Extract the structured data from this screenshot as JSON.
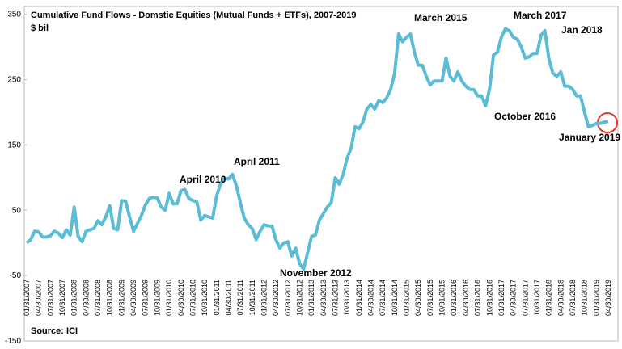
{
  "chart_data": {
    "type": "line",
    "title": "Cumulative Fund Flows - Domstic Equities (Mutual Funds + ETFs), 2007-2019",
    "subtitle": "$ bil",
    "source": "Source: ICI",
    "categories": [
      "01/31/2007",
      null,
      null,
      "04/30/2007",
      null,
      null,
      "07/31/2007",
      null,
      null,
      "10/31/2007",
      null,
      null,
      "01/31/2008",
      null,
      null,
      "04/30/2008",
      null,
      null,
      "07/31/2008",
      null,
      null,
      "10/31/2008",
      null,
      null,
      "01/31/2009",
      null,
      null,
      "04/30/2009",
      null,
      null,
      "07/31/2009",
      null,
      null,
      "10/31/2009",
      null,
      null,
      "01/31/2010",
      null,
      null,
      "04/30/2010",
      null,
      null,
      "07/31/2010",
      null,
      null,
      "10/31/2010",
      null,
      null,
      "01/31/2011",
      null,
      null,
      "04/30/2011",
      null,
      null,
      "07/31/2011",
      null,
      null,
      "10/31/2011",
      null,
      null,
      "01/31/2012",
      null,
      null,
      "04/30/2012",
      null,
      null,
      "07/31/2012",
      null,
      null,
      "10/31/2012",
      null,
      null,
      "01/31/2013",
      null,
      null,
      "04/30/2013",
      null,
      null,
      "07/31/2013",
      null,
      null,
      "10/31/2013",
      null,
      null,
      "01/31/2014",
      null,
      null,
      "04/30/2014",
      null,
      null,
      "07/31/2014",
      null,
      null,
      "10/31/2014",
      null,
      null,
      "01/31/2015",
      null,
      null,
      "04/30/2015",
      null,
      null,
      "07/31/2015",
      null,
      null,
      "10/31/2015",
      null,
      null,
      "01/31/2016",
      null,
      null,
      "04/30/2016",
      null,
      null,
      "07/31/2016",
      null,
      null,
      "10/31/2016",
      null,
      null,
      "01/31/2017",
      null,
      null,
      "04/30/2017",
      null,
      null,
      "07/31/2017",
      null,
      null,
      "10/31/2017",
      null,
      null,
      "01/31/2018",
      null,
      null,
      "04/30/2018",
      null,
      null,
      "07/31/2018",
      null,
      null,
      "10/31/2018",
      null,
      null,
      "01/31/2019",
      null,
      null,
      "04/30/2019"
    ],
    "series": [
      {
        "color": "#5bbcd6",
        "values": [
          0,
          5,
          18,
          17,
          9,
          9,
          11,
          18,
          15,
          8,
          20,
          12,
          55,
          10,
          2,
          18,
          20,
          22,
          34,
          28,
          40,
          57,
          22,
          20,
          65,
          64,
          40,
          18,
          30,
          42,
          58,
          68,
          70,
          69,
          55,
          50,
          76,
          60,
          60,
          80,
          82,
          68,
          65,
          63,
          35,
          42,
          40,
          38,
          72,
          90,
          100,
          98,
          105,
          88,
          62,
          38,
          28,
          22,
          5,
          18,
          28,
          26,
          26,
          5,
          -8,
          0,
          2,
          -20,
          -8,
          -32,
          -40,
          -15,
          10,
          12,
          35,
          45,
          55,
          62,
          100,
          90,
          105,
          130,
          145,
          178,
          175,
          185,
          205,
          212,
          205,
          218,
          215,
          222,
          235,
          260,
          320,
          308,
          315,
          320,
          292,
          272,
          272,
          255,
          242,
          248,
          248,
          248,
          283,
          255,
          248,
          262,
          248,
          240,
          235,
          235,
          225,
          225,
          210,
          236,
          288,
          292,
          315,
          328,
          325,
          315,
          312,
          300,
          283,
          285,
          290,
          290,
          318,
          325,
          282,
          260,
          255,
          262,
          240,
          240,
          235,
          225,
          225,
          200,
          178,
          180,
          183,
          183,
          185,
          186
        ]
      }
    ],
    "ylim": [
      -150,
      362
    ],
    "yticks": [
      -150,
      -50,
      50,
      150,
      250,
      350
    ],
    "annotations": [
      "April 2010",
      "April 2011",
      "November 2012",
      "March 2015",
      "October 2016",
      "March 2017",
      "Jan 2018",
      "January 2019"
    ]
  }
}
